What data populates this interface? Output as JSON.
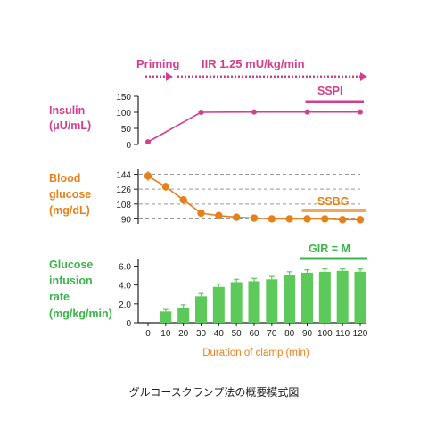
{
  "caption": "グルコースクランプ法の概要模式図",
  "colors": {
    "insulin": "#d43f8d",
    "glucose": "#e8801a",
    "gir": "#3bb44a",
    "gir_bar": "#5cc95a",
    "ssbg_bar": "#f3a85a",
    "axis": "#222222",
    "grid": "#999999"
  },
  "infusion": {
    "priming_label": "Priming",
    "iir_label": "IIR 1.25 mU/kg/min"
  },
  "panels": {
    "insulin": {
      "label_lines": [
        "Insulin",
        "(μU/mL)"
      ],
      "ssp_label": "SSPI"
    },
    "glucose": {
      "label_lines": [
        "Blood",
        "glucose",
        "(mg/dL)"
      ],
      "ss_label": "SSBG"
    },
    "gir": {
      "label_lines": [
        "Glucose",
        "infusion",
        "rate",
        "(mg/kg/min)"
      ],
      "ss_label": "GIR = M"
    }
  },
  "chart_data": [
    {
      "type": "line",
      "title": "",
      "ylabel": "Insulin (μU/mL)",
      "ylim": [
        0,
        150
      ],
      "yticks": [
        0,
        50,
        100,
        150
      ],
      "x": [
        0,
        30,
        60,
        90,
        120
      ],
      "values": [
        8,
        100,
        101,
        101,
        101
      ],
      "annotation": "SSPI",
      "annotation_range": [
        90,
        120
      ]
    },
    {
      "type": "line",
      "title": "",
      "ylabel": "Blood glucose (mg/dL)",
      "ylim": [
        84,
        150
      ],
      "yticks": [
        90,
        108,
        126,
        144
      ],
      "gridlines": [
        90,
        108,
        126,
        144
      ],
      "x": [
        0,
        10,
        20,
        30,
        40,
        50,
        60,
        70,
        80,
        90,
        100,
        110,
        120
      ],
      "values": [
        142,
        129,
        113,
        97,
        94,
        92,
        91,
        90,
        90,
        90,
        90,
        89,
        89
      ],
      "errors": [
        6,
        5,
        3,
        2,
        1,
        1,
        1,
        1,
        1,
        1,
        1,
        1,
        1
      ],
      "annotation": "SSBG",
      "annotation_range": [
        90,
        120
      ]
    },
    {
      "type": "bar",
      "title": "",
      "xlabel": "Duration of clamp (min)",
      "ylabel": "Glucose infusion rate (mg/kg/min)",
      "ylim": [
        0,
        6.8
      ],
      "yticks": [
        0,
        2.0,
        4.0,
        6.0
      ],
      "ytick_labels": [
        "0",
        "2.0",
        "4.0",
        "6.0"
      ],
      "xticks": [
        0,
        10,
        20,
        30,
        40,
        50,
        60,
        70,
        80,
        90,
        100,
        110,
        120
      ],
      "categories": [
        10,
        20,
        30,
        40,
        50,
        60,
        70,
        80,
        90,
        100,
        110,
        120
      ],
      "values": [
        1.2,
        1.6,
        2.8,
        3.8,
        4.3,
        4.4,
        4.6,
        5.1,
        5.3,
        5.4,
        5.5,
        5.4
      ],
      "errors": [
        0.2,
        0.3,
        0.3,
        0.3,
        0.3,
        0.3,
        0.3,
        0.3,
        0.3,
        0.3,
        0.2,
        0.3
      ],
      "annotation": "GIR = M",
      "annotation_range": [
        90,
        120
      ]
    }
  ]
}
